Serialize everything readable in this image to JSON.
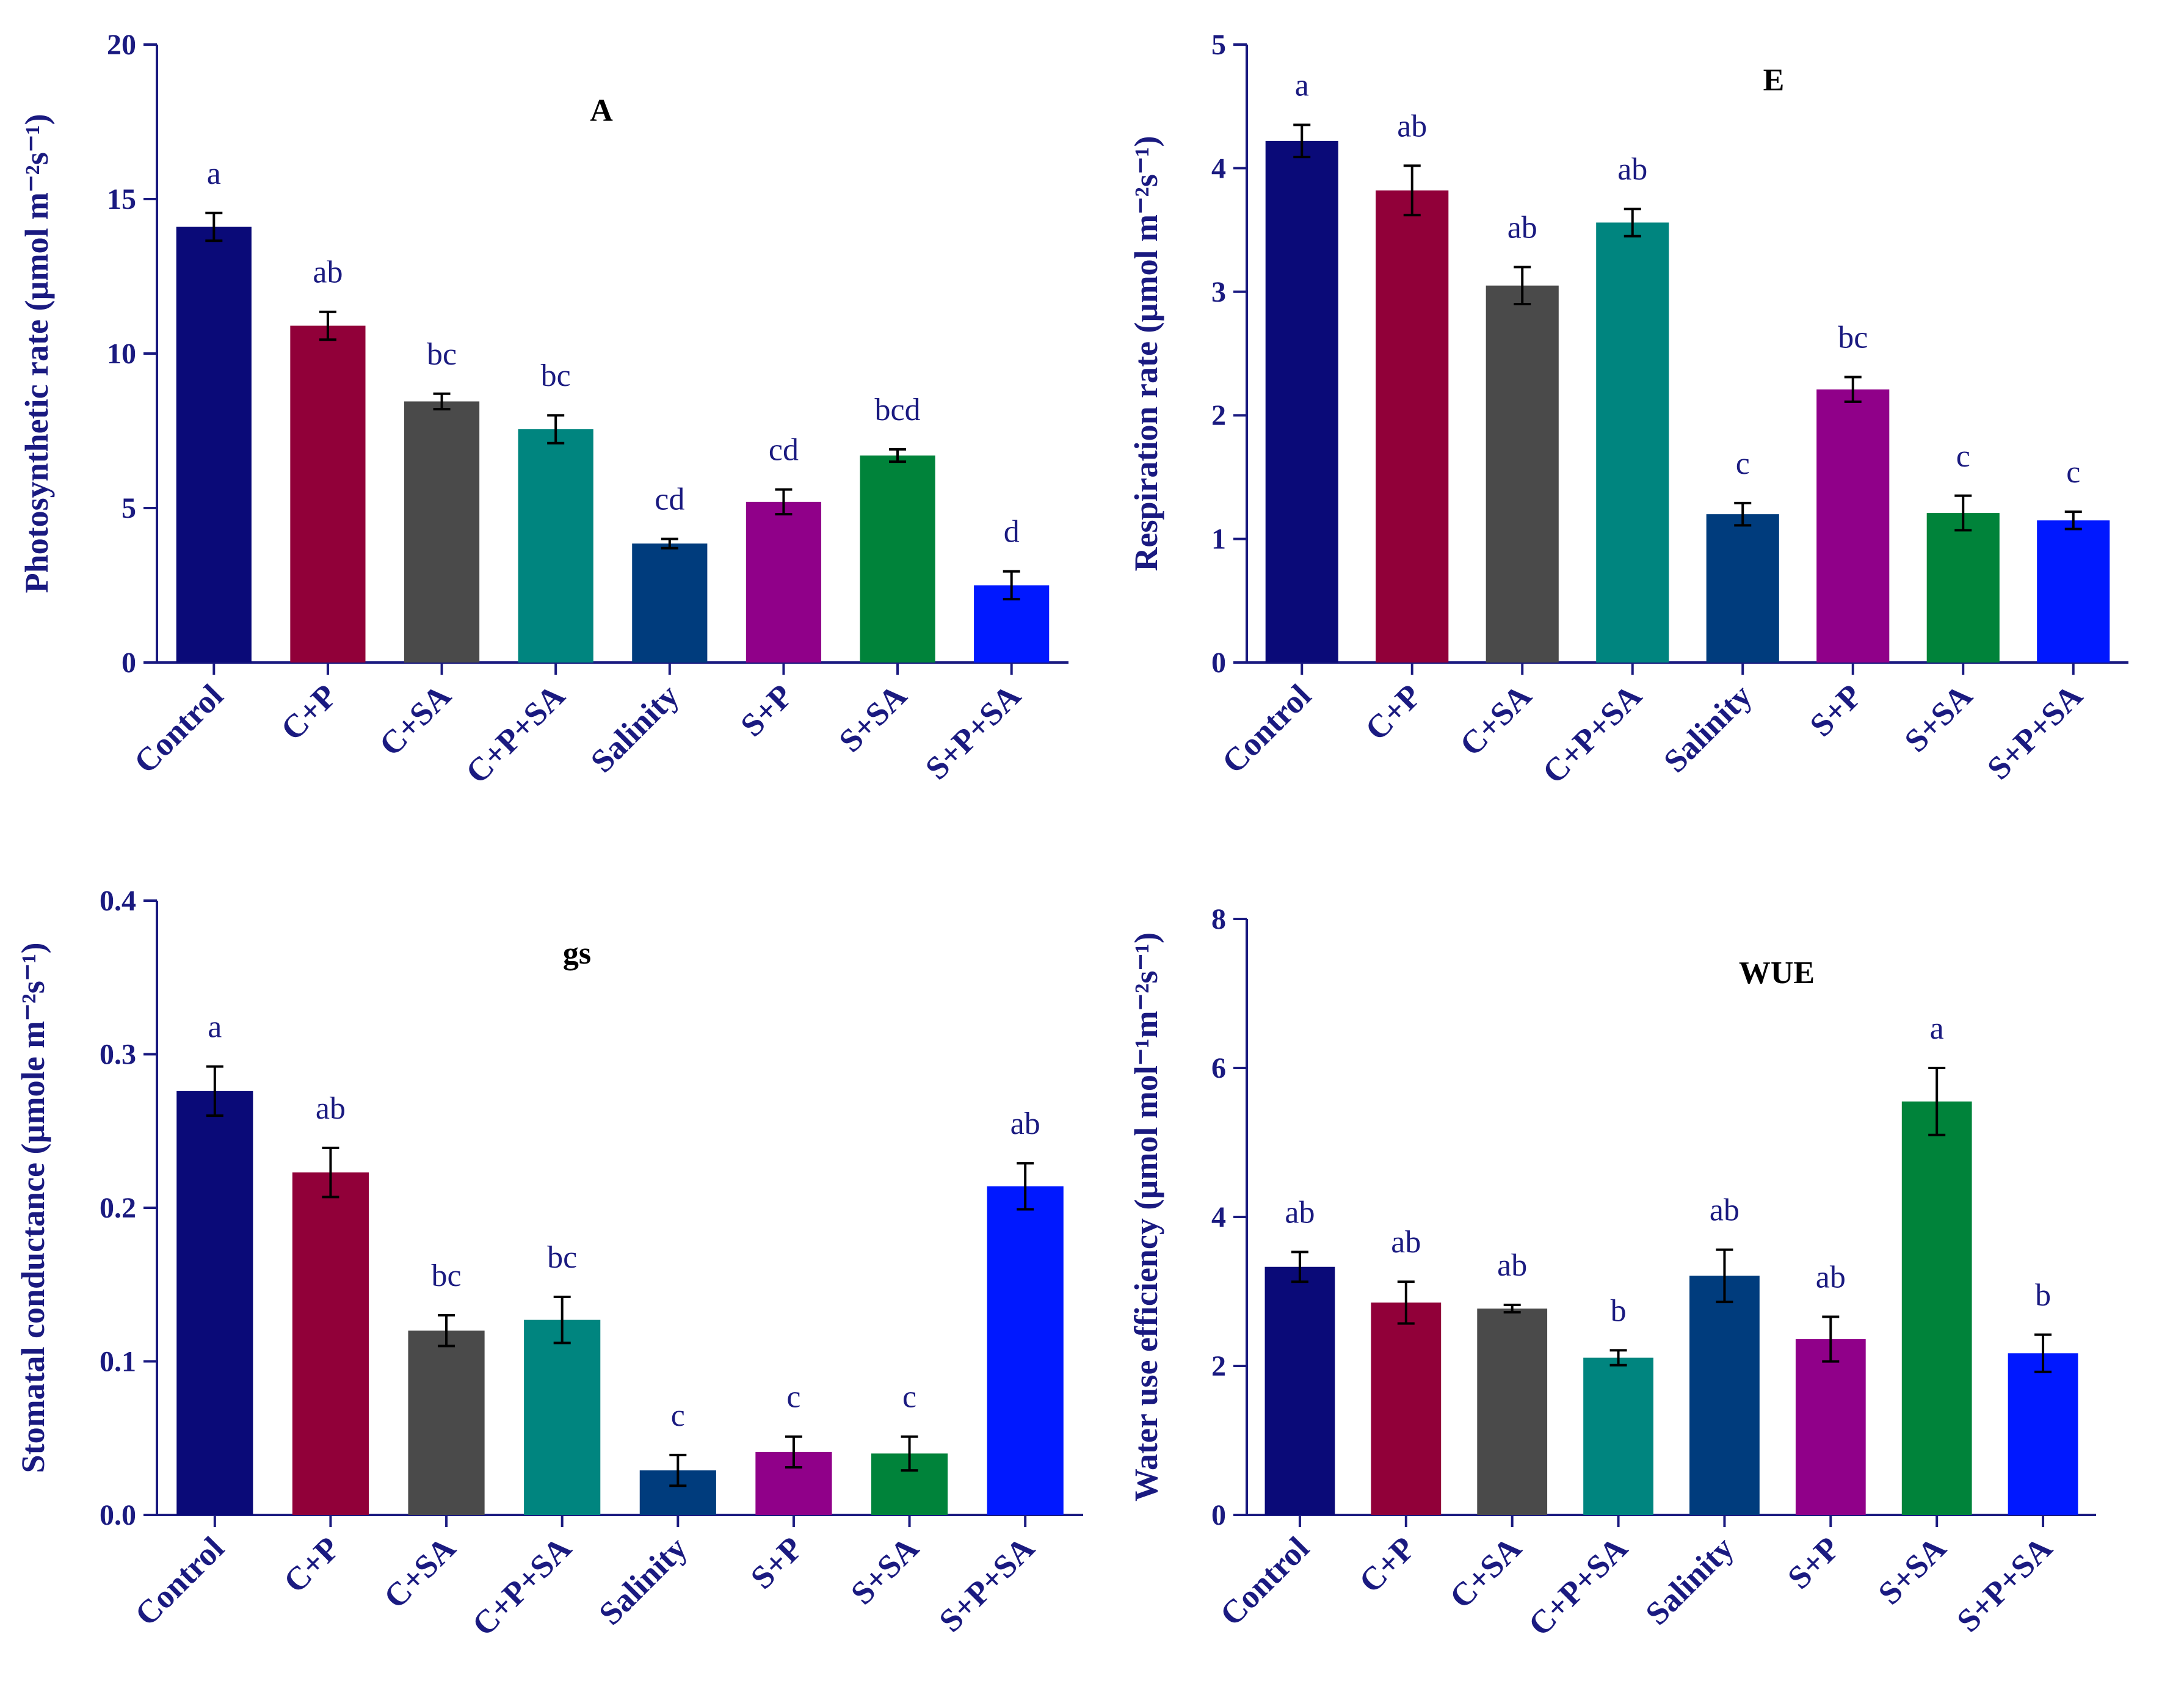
{
  "chart_data": [
    {
      "id": "A",
      "type": "bar",
      "title": "A",
      "xlabel": "",
      "ylabel": "Photosynthetic rate (µmol m⁻²s⁻¹)",
      "ylim": [
        0,
        20
      ],
      "yticks": [
        0,
        5,
        10,
        15,
        20
      ],
      "ytick_labels": [
        "0",
        "5",
        "10",
        "15",
        "20"
      ],
      "categories": [
        "Control",
        "C+P",
        "C+SA",
        "C+P+SA",
        "Salinity",
        "S+P",
        "S+SA",
        "S+P+SA"
      ],
      "values": [
        14.1,
        10.9,
        8.45,
        7.55,
        3.85,
        5.2,
        6.7,
        2.5
      ],
      "errors": [
        0.45,
        0.45,
        0.25,
        0.45,
        0.15,
        0.4,
        0.2,
        0.45
      ],
      "labels": [
        "a",
        "ab",
        "bc",
        "bc",
        "cd",
        "cd",
        "bcd",
        "d"
      ]
    },
    {
      "id": "E",
      "type": "bar",
      "title": "E",
      "xlabel": "",
      "ylabel": "Respiration rate (µmol m⁻²s⁻¹)",
      "ylim": [
        0,
        5
      ],
      "yticks": [
        0,
        1,
        2,
        3,
        4,
        5
      ],
      "ytick_labels": [
        "0",
        "1",
        "2",
        "3",
        "4",
        "5"
      ],
      "categories": [
        "Control",
        "C+P",
        "C+SA",
        "C+P+SA",
        "Salinity",
        "S+P",
        "S+SA",
        "S+P+SA"
      ],
      "values": [
        4.22,
        3.82,
        3.05,
        3.56,
        1.2,
        2.21,
        1.21,
        1.15
      ],
      "errors": [
        0.13,
        0.2,
        0.15,
        0.11,
        0.09,
        0.1,
        0.14,
        0.07
      ],
      "labels": [
        "a",
        "ab",
        "ab",
        "ab",
        "c",
        "bc",
        "c",
        "c"
      ]
    },
    {
      "id": "gs",
      "type": "bar",
      "title": "gs",
      "xlabel": "",
      "ylabel": "Stomatal conductance (µmole m⁻²s⁻¹)",
      "ylim": [
        0,
        0.4
      ],
      "yticks": [
        0,
        0.1,
        0.2,
        0.3,
        0.4
      ],
      "ytick_labels": [
        "0.0",
        "0.1",
        "0.2",
        "0.3",
        "0.4"
      ],
      "categories": [
        "Control",
        "C+P",
        "C+SA",
        "C+P+SA",
        "Salinity",
        "S+P",
        "S+SA",
        "S+P+SA"
      ],
      "values": [
        0.276,
        0.223,
        0.12,
        0.127,
        0.029,
        0.041,
        0.04,
        0.214
      ],
      "errors": [
        0.016,
        0.016,
        0.01,
        0.015,
        0.01,
        0.01,
        0.011,
        0.015
      ],
      "labels": [
        "a",
        "ab",
        "bc",
        "bc",
        "c",
        "c",
        "c",
        "ab"
      ]
    },
    {
      "id": "WUE",
      "type": "bar",
      "title": "WUE",
      "xlabel": "",
      "ylabel": "Water use efficiency (µmol mol⁻¹m⁻²s⁻¹)",
      "ylim": [
        0,
        8
      ],
      "yticks": [
        0,
        2,
        4,
        6,
        8
      ],
      "ytick_labels": [
        "0",
        "2",
        "4",
        "6",
        "8"
      ],
      "categories": [
        "Control",
        "C+P",
        "C+SA",
        "C+P+SA",
        "Salinity",
        "S+P",
        "S+SA",
        "S+P+SA"
      ],
      "values": [
        3.33,
        2.85,
        2.77,
        2.11,
        3.21,
        2.36,
        5.55,
        2.17
      ],
      "errors": [
        0.2,
        0.28,
        0.05,
        0.1,
        0.35,
        0.3,
        0.45,
        0.25
      ],
      "labels": [
        "ab",
        "ab",
        "ab",
        "b",
        "ab",
        "ab",
        "a",
        "b"
      ]
    }
  ],
  "colors": {
    "bars": [
      "#0a0a78",
      "#910039",
      "#4a4a4a",
      "#00857f",
      "#003c7d",
      "#900089",
      "#00833a",
      "#0018ff"
    ],
    "axis": "#1a1a80"
  }
}
